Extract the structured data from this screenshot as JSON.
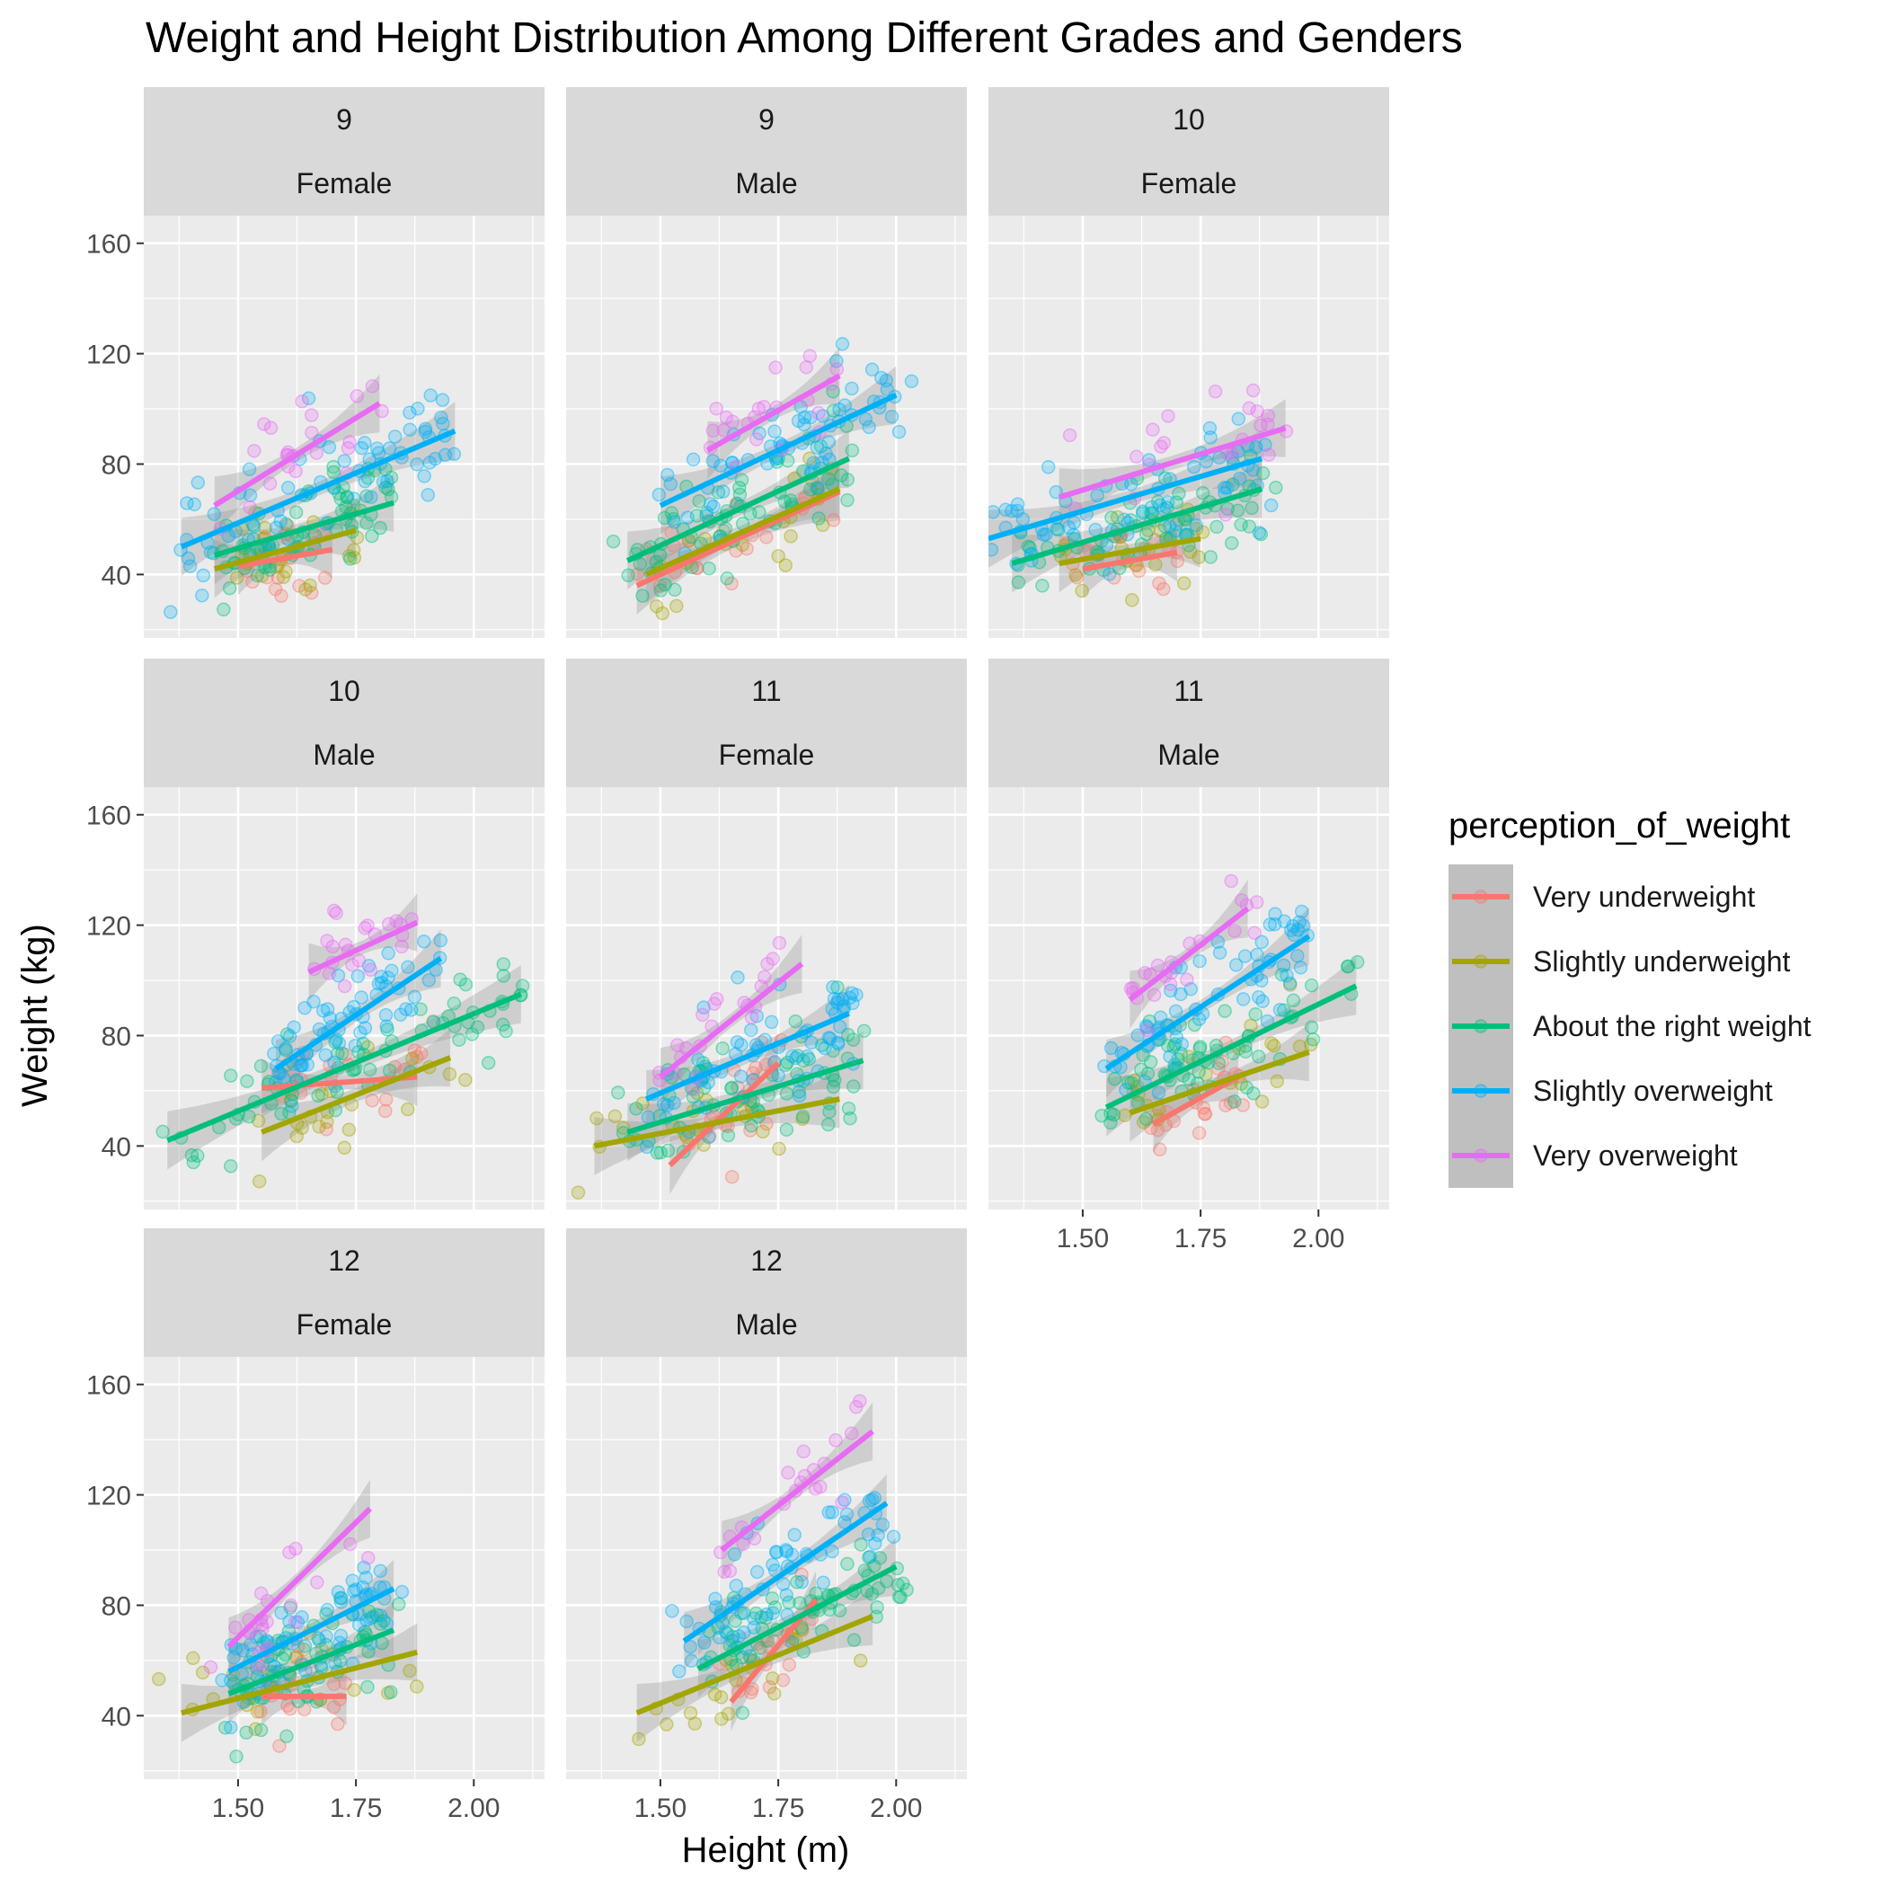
{
  "chart_data": {
    "type": "scatter",
    "title": "Weight and Height Distribution Among Different Grades and Genders",
    "xlabel": "Height (m)",
    "ylabel": "Weight (kg)",
    "xlim": [
      1.3,
      2.15
    ],
    "ylim": [
      17,
      170
    ],
    "x_ticks": [
      1.5,
      1.75,
      2.0
    ],
    "x_tick_labels": [
      "1.50",
      "1.75",
      "2.00"
    ],
    "y_ticks": [
      40,
      80,
      120,
      160
    ],
    "y_tick_labels": [
      "40",
      "80",
      "120",
      "160"
    ],
    "grid": true,
    "legend": {
      "title": "perception_of_weight",
      "position": "right",
      "entries": [
        "Very underweight",
        "Slightly underweight",
        "About the right weight",
        "Slightly overweight",
        "Very overweight"
      ]
    },
    "colors": {
      "Very underweight": "#F8766D",
      "Slightly underweight": "#A3A500",
      "About the right weight": "#00BF7D",
      "Slightly overweight": "#00B0F6",
      "Very overweight": "#E76BF3"
    },
    "facets": [
      {
        "grade": "9",
        "gender": "Female",
        "trend_lines": {
          "Very underweight": [
            [
              1.5,
              43
            ],
            [
              1.7,
              49
            ]
          ],
          "Slightly underweight": [
            [
              1.45,
              42
            ],
            [
              1.75,
              56
            ]
          ],
          "About the right weight": [
            [
              1.45,
              47
            ],
            [
              1.83,
              66
            ]
          ],
          "Slightly overweight": [
            [
              1.38,
              50
            ],
            [
              1.96,
              92
            ]
          ],
          "Very overweight": [
            [
              1.45,
              65
            ],
            [
              1.8,
              102
            ]
          ]
        }
      },
      {
        "grade": "9",
        "gender": "Male",
        "trend_lines": {
          "Very underweight": [
            [
              1.45,
              36
            ],
            [
              1.88,
              70
            ]
          ],
          "Slightly underweight": [
            [
              1.47,
              40
            ],
            [
              1.88,
              71
            ]
          ],
          "About the right weight": [
            [
              1.43,
              45
            ],
            [
              1.9,
              82
            ]
          ],
          "Slightly overweight": [
            [
              1.5,
              65
            ],
            [
              2.0,
              105
            ]
          ],
          "Very overweight": [
            [
              1.6,
              85
            ],
            [
              1.88,
              112
            ]
          ]
        }
      },
      {
        "grade": "10",
        "gender": "Female",
        "trend_lines": {
          "Very underweight": [
            [
              1.5,
              42
            ],
            [
              1.7,
              48
            ]
          ],
          "Slightly underweight": [
            [
              1.45,
              44
            ],
            [
              1.75,
              53
            ]
          ],
          "About the right weight": [
            [
              1.35,
              44
            ],
            [
              1.88,
              71
            ]
          ],
          "Slightly overweight": [
            [
              1.3,
              53
            ],
            [
              1.88,
              82
            ]
          ],
          "Very overweight": [
            [
              1.45,
              68
            ],
            [
              1.93,
              93
            ]
          ]
        }
      },
      {
        "grade": "10",
        "gender": "Male",
        "trend_lines": {
          "Very underweight": [
            [
              1.55,
              61
            ],
            [
              1.88,
              65
            ]
          ],
          "Slightly underweight": [
            [
              1.55,
              45
            ],
            [
              1.95,
              72
            ]
          ],
          "About the right weight": [
            [
              1.35,
              42
            ],
            [
              2.1,
              95
            ]
          ],
          "Slightly overweight": [
            [
              1.58,
              68
            ],
            [
              1.93,
              108
            ]
          ],
          "Very overweight": [
            [
              1.65,
              103
            ],
            [
              1.88,
              121
            ]
          ]
        }
      },
      {
        "grade": "11",
        "gender": "Female",
        "trend_lines": {
          "Very underweight": [
            [
              1.52,
              33
            ],
            [
              1.75,
              70
            ]
          ],
          "Slightly underweight": [
            [
              1.36,
              40
            ],
            [
              1.88,
              57
            ]
          ],
          "About the right weight": [
            [
              1.43,
              45
            ],
            [
              1.93,
              71
            ]
          ],
          "Slightly overweight": [
            [
              1.47,
              57
            ],
            [
              1.9,
              88
            ]
          ],
          "Very overweight": [
            [
              1.5,
              65
            ],
            [
              1.8,
              106
            ]
          ]
        }
      },
      {
        "grade": "11",
        "gender": "Male",
        "trend_lines": {
          "Very underweight": [
            [
              1.65,
              48
            ],
            [
              1.83,
              65
            ]
          ],
          "Slightly underweight": [
            [
              1.6,
              52
            ],
            [
              1.98,
              74
            ]
          ],
          "About the right weight": [
            [
              1.55,
              54
            ],
            [
              2.08,
              98
            ]
          ],
          "Slightly overweight": [
            [
              1.55,
              68
            ],
            [
              1.98,
              116
            ]
          ],
          "Very overweight": [
            [
              1.6,
              93
            ],
            [
              1.85,
              126
            ]
          ]
        }
      },
      {
        "grade": "12",
        "gender": "Female",
        "trend_lines": {
          "Very underweight": [
            [
              1.55,
              47
            ],
            [
              1.73,
              47
            ]
          ],
          "Slightly underweight": [
            [
              1.38,
              41
            ],
            [
              1.88,
              63
            ]
          ],
          "About the right weight": [
            [
              1.48,
              48
            ],
            [
              1.83,
              71
            ]
          ],
          "Slightly overweight": [
            [
              1.48,
              56
            ],
            [
              1.83,
              86
            ]
          ],
          "Very overweight": [
            [
              1.48,
              65
            ],
            [
              1.78,
              115
            ]
          ]
        }
      },
      {
        "grade": "12",
        "gender": "Male",
        "trend_lines": {
          "Very underweight": [
            [
              1.65,
              45
            ],
            [
              1.83,
              82
            ]
          ],
          "Slightly underweight": [
            [
              1.45,
              41
            ],
            [
              1.95,
              76
            ]
          ],
          "About the right weight": [
            [
              1.58,
              57
            ],
            [
              2.0,
              94
            ]
          ],
          "Slightly overweight": [
            [
              1.55,
              67
            ],
            [
              1.98,
              117
            ]
          ],
          "Very overweight": [
            [
              1.63,
              100
            ],
            [
              1.95,
              143
            ]
          ]
        }
      }
    ]
  }
}
